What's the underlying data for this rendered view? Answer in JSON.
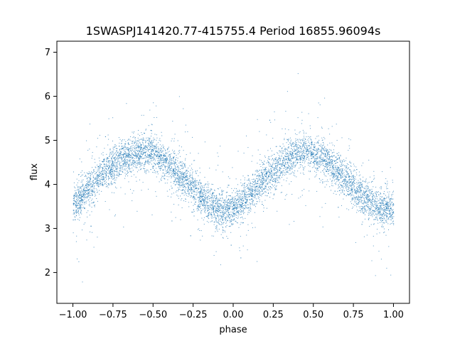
{
  "chart_data": {
    "type": "scatter",
    "title": "1SWASPJ141420.77-415755.4 Period 16855.96094s",
    "xlabel": "phase",
    "ylabel": "flux",
    "xlim": [
      -1.1,
      1.1
    ],
    "ylim": [
      1.3,
      7.25
    ],
    "xticks": [
      -1.0,
      -0.75,
      -0.5,
      -0.25,
      0.0,
      0.25,
      0.5,
      0.75,
      1.0
    ],
    "xtick_labels": [
      "−1.00",
      "−0.75",
      "−0.50",
      "−0.25",
      "0.00",
      "0.25",
      "0.50",
      "0.75",
      "1.00"
    ],
    "yticks": [
      2,
      3,
      4,
      5,
      6,
      7
    ],
    "ytick_labels": [
      "2",
      "3",
      "4",
      "5",
      "6",
      "7"
    ],
    "grid": false,
    "legend": "none",
    "marker_color": "#1f77b4",
    "series": [
      {
        "x": [
          -1.0,
          -0.9,
          -0.8,
          -0.7,
          -0.6,
          -0.55,
          -0.5,
          -0.4,
          -0.3,
          -0.2,
          -0.1,
          -0.05,
          0.0,
          0.1,
          0.2,
          0.3,
          0.4,
          0.45,
          0.5,
          0.6,
          0.7,
          0.8,
          0.9,
          1.0
        ],
        "y": [
          3.5,
          3.95,
          4.3,
          4.6,
          4.72,
          4.75,
          4.7,
          4.45,
          4.1,
          3.7,
          3.45,
          3.4,
          3.42,
          3.75,
          4.15,
          4.5,
          4.72,
          4.75,
          4.68,
          4.45,
          4.1,
          3.75,
          3.5,
          3.45
        ]
      }
    ]
  }
}
